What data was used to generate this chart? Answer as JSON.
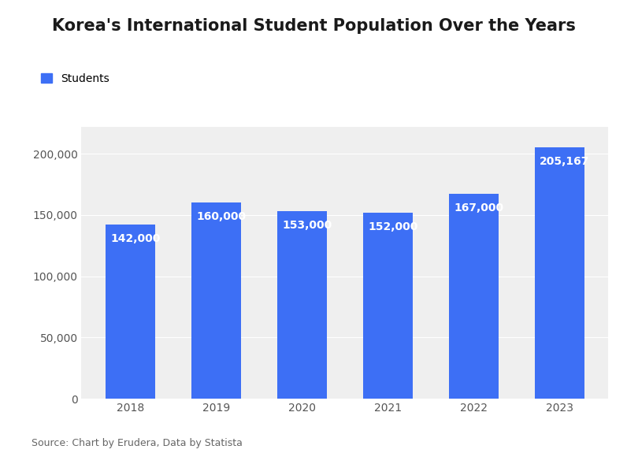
{
  "title": "Korea's International Student Population Over the Years",
  "categories": [
    "2018",
    "2019",
    "2020",
    "2021",
    "2022",
    "2023"
  ],
  "values": [
    142000,
    160000,
    153000,
    152000,
    167000,
    205167
  ],
  "labels": [
    "142,000",
    "160,000",
    "153,000",
    "152,000",
    "167,000",
    "205,167"
  ],
  "bar_color": "#3d6ff5",
  "background_color": "#ffffff",
  "plot_bg_color": "#efefef",
  "title_fontsize": 15,
  "label_fontsize": 10,
  "tick_fontsize": 10,
  "legend_label": "Students",
  "source_text": "Source: Chart by Erudera, Data by Statista",
  "ylim": [
    0,
    222000
  ],
  "yticks": [
    0,
    50000,
    100000,
    150000,
    200000
  ]
}
